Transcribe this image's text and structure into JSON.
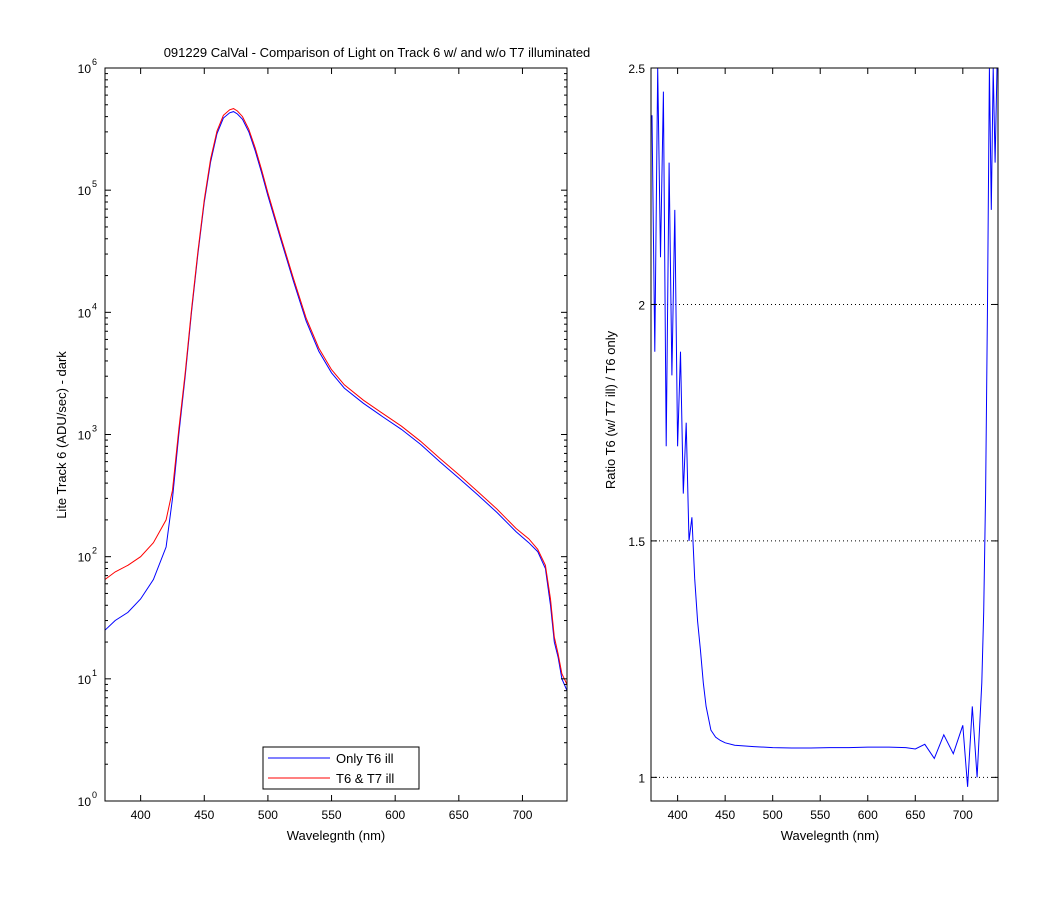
{
  "figure_title": "091229 CalVal - Comparison of Light on Track 6 w/ and w/o T7 illuminated",
  "chart_data": [
    {
      "type": "line",
      "title": "091229 CalVal - Comparison of Light on Track 6 w/ and w/o T7 illuminated",
      "xlabel": "Wavelegnth (nm)",
      "ylabel": "Lite Track 6 (ADU/sec) - dark",
      "xlim": [
        372,
        735
      ],
      "ylim": [
        1,
        1000000
      ],
      "yscale": "log",
      "grid": false,
      "legend_position": "bottom-center",
      "x_ticks": [
        400,
        450,
        500,
        550,
        600,
        650,
        700
      ],
      "y_ticks": [
        {
          "base": "10",
          "exp": "0"
        },
        {
          "base": "10",
          "exp": "1"
        },
        {
          "base": "10",
          "exp": "2"
        },
        {
          "base": "10",
          "exp": "3"
        },
        {
          "base": "10",
          "exp": "4"
        },
        {
          "base": "10",
          "exp": "5"
        },
        {
          "base": "10",
          "exp": "6"
        }
      ],
      "series": [
        {
          "name": "Only T6 ill",
          "color": "#0000ff",
          "x": [
            372,
            380,
            390,
            400,
            410,
            420,
            425,
            430,
            435,
            440,
            445,
            450,
            455,
            460,
            465,
            470,
            473,
            476,
            480,
            485,
            490,
            495,
            500,
            510,
            520,
            530,
            540,
            550,
            560,
            575,
            590,
            605,
            620,
            635,
            650,
            665,
            680,
            695,
            705,
            712,
            718,
            722,
            725,
            728,
            731,
            735
          ],
          "y": [
            25,
            30,
            35,
            45,
            65,
            120,
            300,
            1000,
            3000,
            10000,
            30000,
            80000,
            170000,
            290000,
            390000,
            430000,
            440000,
            420000,
            380000,
            300000,
            210000,
            140000,
            90000,
            40000,
            18000,
            8500,
            4800,
            3200,
            2400,
            1800,
            1400,
            1100,
            830,
            600,
            440,
            320,
            230,
            160,
            130,
            110,
            80,
            40,
            20,
            15,
            10,
            8
          ]
        },
        {
          "name": "T6 & T7 ill",
          "color": "#ff0000",
          "x": [
            372,
            380,
            390,
            400,
            410,
            420,
            425,
            430,
            435,
            440,
            445,
            450,
            455,
            460,
            465,
            470,
            473,
            476,
            480,
            485,
            490,
            495,
            500,
            510,
            520,
            530,
            540,
            550,
            560,
            575,
            590,
            605,
            620,
            635,
            650,
            665,
            680,
            695,
            705,
            712,
            718,
            722,
            725,
            728,
            731,
            735
          ],
          "y": [
            65,
            75,
            85,
            100,
            130,
            200,
            350,
            1100,
            3200,
            10500,
            31500,
            84000,
            180000,
            305000,
            410000,
            455000,
            465000,
            445000,
            400000,
            315000,
            222000,
            148000,
            95000,
            42000,
            19000,
            9000,
            5100,
            3400,
            2550,
            1910,
            1490,
            1170,
            880,
            640,
            470,
            340,
            245,
            170,
            140,
            115,
            85,
            45,
            22,
            16,
            11,
            9
          ]
        }
      ]
    },
    {
      "type": "line",
      "title": "",
      "xlabel": "Wavelegnth (nm)",
      "ylabel": "Ratio T6 (w/ T7 ill) / T6 only",
      "xlim": [
        372,
        737
      ],
      "ylim": [
        0.95,
        2.5
      ],
      "yscale": "linear",
      "grid": "y-dotted",
      "x_ticks": [
        "400",
        "450",
        "500",
        "550",
        "600",
        "650",
        "700"
      ],
      "y_ticks": [
        "1",
        "1.5",
        "2",
        "2.5"
      ],
      "series": [
        {
          "name": "",
          "color": "#0000ff",
          "x": [
            373,
            376,
            379,
            382,
            385,
            388,
            391,
            394,
            397,
            400,
            403,
            406,
            409,
            412,
            415,
            418,
            421,
            424,
            427,
            430,
            435,
            440,
            445,
            450,
            460,
            480,
            500,
            520,
            540,
            560,
            580,
            600,
            620,
            640,
            650,
            660,
            670,
            680,
            690,
            700,
            705,
            710,
            715,
            720,
            722,
            724,
            726,
            728,
            730,
            732,
            734,
            736
          ],
          "y": [
            2.4,
            1.9,
            2.5,
            2.1,
            2.45,
            1.7,
            2.3,
            1.85,
            2.2,
            1.7,
            1.9,
            1.6,
            1.75,
            1.5,
            1.55,
            1.42,
            1.33,
            1.27,
            1.2,
            1.15,
            1.1,
            1.085,
            1.078,
            1.073,
            1.068,
            1.065,
            1.063,
            1.062,
            1.062,
            1.063,
            1.063,
            1.064,
            1.064,
            1.063,
            1.06,
            1.07,
            1.04,
            1.09,
            1.05,
            1.11,
            0.98,
            1.15,
            1.0,
            1.2,
            1.35,
            1.6,
            2.0,
            2.5,
            2.2,
            2.5,
            2.3,
            2.5
          ]
        }
      ]
    }
  ]
}
